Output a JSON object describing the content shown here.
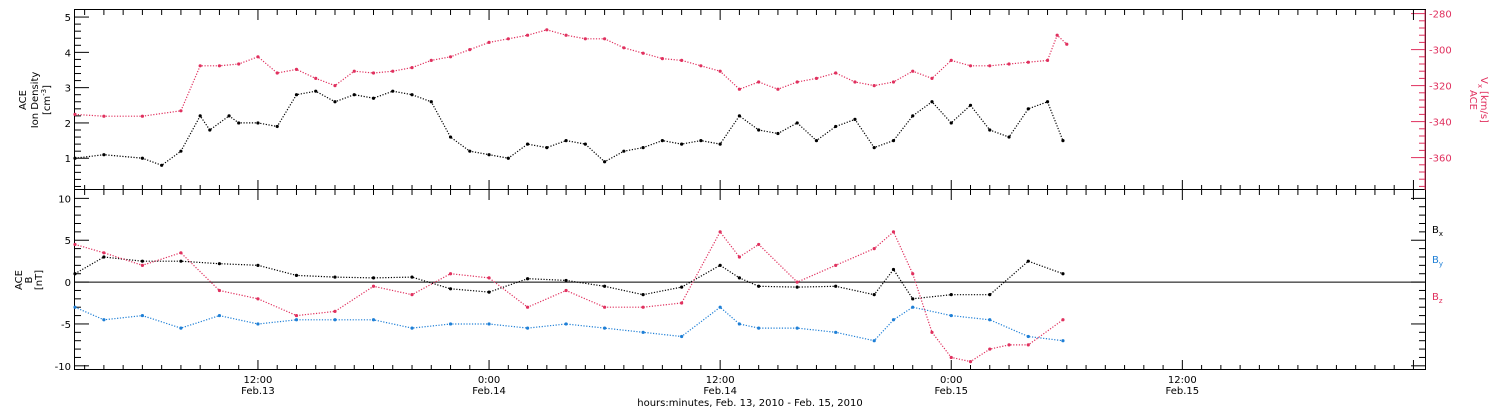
{
  "colors": {
    "black": "#000000",
    "red": "#e0305e",
    "blue": "#1e7fd6"
  },
  "xaxis": {
    "title": "hours:minutes, Feb. 13, 2010 - Feb. 15, 2010",
    "range_hours": [
      2.5,
      72.6
    ],
    "ticks": [
      {
        "h": 12,
        "time": "12:00",
        "date": "Feb.13"
      },
      {
        "h": 24,
        "time": "0:00",
        "date": "Feb.14"
      },
      {
        "h": 36,
        "time": "12:00",
        "date": "Feb.14"
      },
      {
        "h": 48,
        "time": "0:00",
        "date": "Feb.15"
      },
      {
        "h": 60,
        "time": "12:00",
        "date": "Feb.15"
      }
    ]
  },
  "top_panel": {
    "left_label": [
      "ACE",
      "Ion Density",
      "[cm",
      "-3",
      "]"
    ],
    "right_label": [
      "ACE",
      "V",
      "x",
      "[km/s]"
    ],
    "left_ticks": [
      "1",
      "2",
      "3",
      "4",
      "5"
    ],
    "right_ticks": [
      "-280",
      "-300",
      "-320",
      "-340",
      "-360"
    ]
  },
  "bottom_panel": {
    "left_label": [
      "ACE",
      "B",
      "[nT]"
    ],
    "ticks": [
      "10",
      "5",
      "0",
      "-5",
      "-10"
    ],
    "legend": [
      {
        "base": "B",
        "sub": "x",
        "color": "#000000"
      },
      {
        "base": "B",
        "sub": "y",
        "color": "#1e7fd6"
      },
      {
        "base": "B",
        "sub": "z",
        "color": "#e0305e"
      }
    ]
  },
  "chart_data": [
    {
      "type": "scatter",
      "title": "",
      "xlabel": "hours:minutes, Feb. 13, 2010 - Feb. 15, 2010",
      "ylabel": "ACE Ion Density [cm-3]",
      "y2label": "ACE Vx [km/s]",
      "ylim": [
        0.1,
        5.2
      ],
      "y2lim": [
        -378,
        -278
      ],
      "series": [
        {
          "name": "Ion Density",
          "axis": "left",
          "color": "#000000",
          "x": [
            2.5,
            4,
            6,
            7,
            8,
            9,
            9.5,
            10.5,
            11,
            12,
            13,
            14,
            15,
            16,
            17,
            18,
            19,
            20,
            21,
            22,
            23,
            24,
            25,
            26,
            27,
            28,
            29,
            30,
            31,
            32,
            33,
            34,
            35,
            36,
            37,
            38,
            39,
            40,
            41,
            42,
            43,
            44,
            45,
            46,
            47,
            48,
            49,
            50,
            51,
            52,
            53,
            53.8
          ],
          "y": [
            1.0,
            1.1,
            1.0,
            0.8,
            1.2,
            2.2,
            1.8,
            2.2,
            2.0,
            2.0,
            1.9,
            2.8,
            2.9,
            2.6,
            2.8,
            2.7,
            2.9,
            2.8,
            2.6,
            1.6,
            1.2,
            1.1,
            1.0,
            1.4,
            1.3,
            1.5,
            1.4,
            0.9,
            1.2,
            1.3,
            1.5,
            1.4,
            1.5,
            1.4,
            2.2,
            1.8,
            1.7,
            2.0,
            1.5,
            1.9,
            2.1,
            1.3,
            1.5,
            2.2,
            2.6,
            2.0,
            2.5,
            1.8,
            1.6,
            2.4,
            2.6,
            1.5
          ]
        },
        {
          "name": "Vx",
          "axis": "right",
          "color": "#e0305e",
          "x": [
            2.5,
            4,
            6,
            8,
            9,
            10,
            11,
            12,
            13,
            14,
            15,
            16,
            17,
            18,
            19,
            20,
            21,
            22,
            23,
            24,
            25,
            26,
            27,
            28,
            29,
            30,
            31,
            32,
            33,
            34,
            35,
            36,
            37,
            38,
            39,
            40,
            41,
            42,
            43,
            44,
            45,
            46,
            47,
            48,
            49,
            50,
            51,
            52,
            53,
            53.5,
            54
          ],
          "y": [
            -336,
            -337,
            -337,
            -334,
            -309,
            -309,
            -308,
            -304,
            -313,
            -311,
            -316,
            -320,
            -312,
            -313,
            -312,
            -310,
            -306,
            -304,
            -300,
            -296,
            -294,
            -292,
            -289,
            -292,
            -294,
            -294,
            -299,
            -302,
            -305,
            -306,
            -309,
            -312,
            -322,
            -318,
            -322,
            -318,
            -316,
            -313,
            -318,
            -320,
            -318,
            -312,
            -316,
            -306,
            -309,
            -309,
            -308,
            -307,
            -306,
            -292,
            -297
          ]
        }
      ]
    },
    {
      "type": "scatter",
      "title": "",
      "xlabel": "hours:minutes, Feb. 13, 2010 - Feb. 15, 2010",
      "ylabel": "ACE B [nT]",
      "ylim": [
        -10.5,
        11
      ],
      "series": [
        {
          "name": "Bx",
          "color": "#000000",
          "x": [
            2.5,
            4,
            6,
            8,
            10,
            12,
            14,
            16,
            18,
            20,
            22,
            24,
            26,
            28,
            30,
            32,
            34,
            36,
            37,
            38,
            40,
            42,
            44,
            45,
            46,
            48,
            50,
            52,
            53.8
          ],
          "y": [
            1.0,
            3.0,
            2.5,
            2.5,
            2.2,
            2.0,
            0.8,
            0.6,
            0.5,
            0.6,
            -0.8,
            -1.2,
            0.4,
            0.2,
            -0.5,
            -1.5,
            -0.6,
            2.0,
            0.5,
            -0.5,
            -0.6,
            -0.5,
            -1.5,
            1.5,
            -2.0,
            -1.5,
            -1.5,
            2.5,
            1.0
          ]
        },
        {
          "name": "By",
          "color": "#1e7fd6",
          "x": [
            2.5,
            4,
            6,
            8,
            10,
            12,
            14,
            16,
            18,
            20,
            22,
            24,
            26,
            28,
            30,
            32,
            34,
            36,
            37,
            38,
            40,
            42,
            44,
            45,
            46,
            48,
            50,
            52,
            53.8
          ],
          "y": [
            -3.0,
            -4.5,
            -4.0,
            -5.5,
            -4.0,
            -5.0,
            -4.5,
            -4.5,
            -4.5,
            -5.5,
            -5.0,
            -5.0,
            -5.5,
            -5.0,
            -5.5,
            -6.0,
            -6.5,
            -3.0,
            -5.0,
            -5.5,
            -5.5,
            -6.0,
            -7.0,
            -4.5,
            -3.0,
            -4.0,
            -4.5,
            -6.5,
            -7.0
          ]
        },
        {
          "name": "Bz",
          "color": "#e0305e",
          "x": [
            2.5,
            4,
            6,
            8,
            10,
            12,
            14,
            16,
            18,
            20,
            22,
            24,
            26,
            28,
            30,
            32,
            34,
            36,
            37,
            38,
            40,
            42,
            44,
            45,
            46,
            47,
            48,
            49,
            50,
            51,
            52,
            53.8
          ],
          "y": [
            4.5,
            3.5,
            2.0,
            3.5,
            -1.0,
            -2.0,
            -4.0,
            -3.5,
            -0.5,
            -1.5,
            1.0,
            0.5,
            -3.0,
            -1.0,
            -3.0,
            -3.0,
            -2.5,
            6.0,
            3.0,
            4.5,
            0.0,
            2.0,
            4.0,
            6.0,
            1.0,
            -6.0,
            -9.0,
            -9.5,
            -8.0,
            -7.5,
            -7.5,
            -4.5
          ]
        }
      ]
    }
  ]
}
